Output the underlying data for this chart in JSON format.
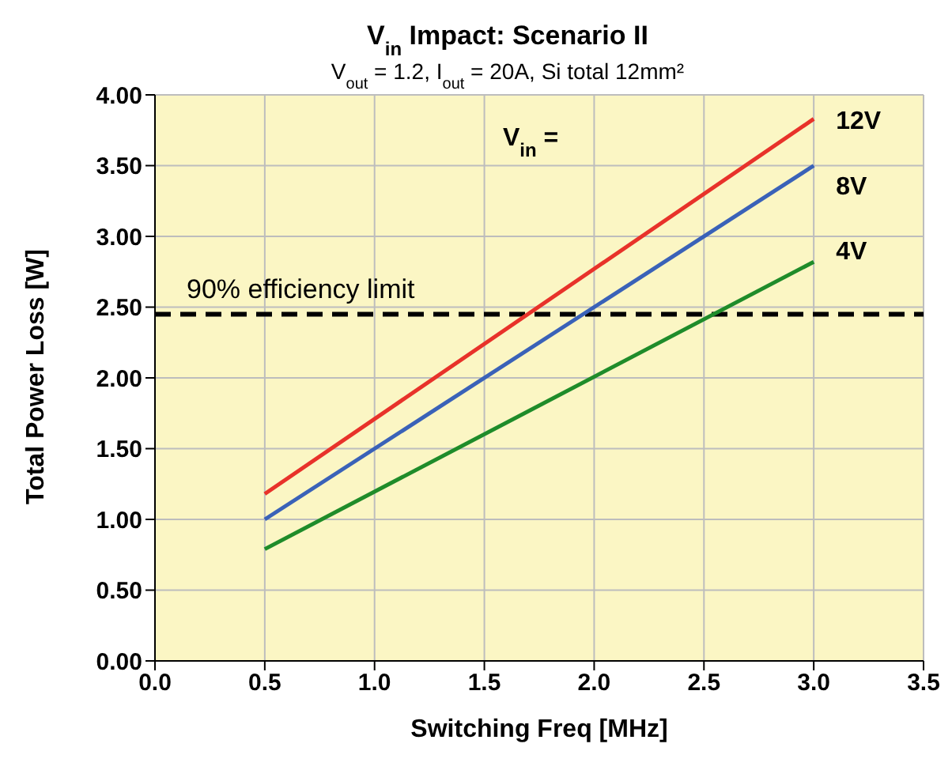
{
  "chart_data": {
    "type": "line",
    "title": "V$_{in}$ Impact: Scenario II",
    "subtitle": "V$_{out}$ = 1.2, I$_{out}$ = 20A, Si total 12mm²",
    "xlabel": "Switching Freq [MHz]",
    "ylabel": "Total Power Loss [W]",
    "x": [
      0.5,
      3
    ],
    "series": [
      {
        "name": "12V",
        "color": "#e8322a",
        "values": [
          1.18,
          3.83
        ]
      },
      {
        "name": "8V",
        "color": "#3a62b8",
        "values": [
          1.0,
          3.5
        ]
      },
      {
        "name": "4V",
        "color": "#1f8c2a",
        "values": [
          0.79,
          2.82
        ]
      }
    ],
    "annotations": [
      "V$_{in}$ ="
    ],
    "ref_lines": [
      {
        "axis": "y",
        "value": 2.45,
        "label": "90% efficiency limit",
        "color": "#000000",
        "line_style": "dashed"
      }
    ],
    "xlim": [
      0,
      3.5
    ],
    "xticks": [
      {
        "value": 0,
        "label": "0.0"
      },
      0.5,
      {
        "value": 1,
        "label": "1.0"
      },
      1.5,
      {
        "value": 2,
        "label": "2.0"
      },
      2.5,
      {
        "value": 3,
        "label": "3.0"
      },
      3.5
    ],
    "ylim": [
      0,
      4
    ],
    "yticks": [
      {
        "value": 0,
        "label": "0.00"
      },
      {
        "value": 0.5,
        "label": "0.50"
      },
      {
        "value": 1,
        "label": "1.00"
      },
      {
        "value": 1.5,
        "label": "1.50"
      },
      {
        "value": 2,
        "label": "2.00"
      },
      {
        "value": 2.5,
        "label": "2.50"
      },
      {
        "value": 3,
        "label": "3.00"
      },
      {
        "value": 3.5,
        "label": "3.50"
      },
      {
        "value": 4,
        "label": "4.00"
      }
    ],
    "grid": true,
    "marker": "none",
    "line_style": "solid"
  }
}
